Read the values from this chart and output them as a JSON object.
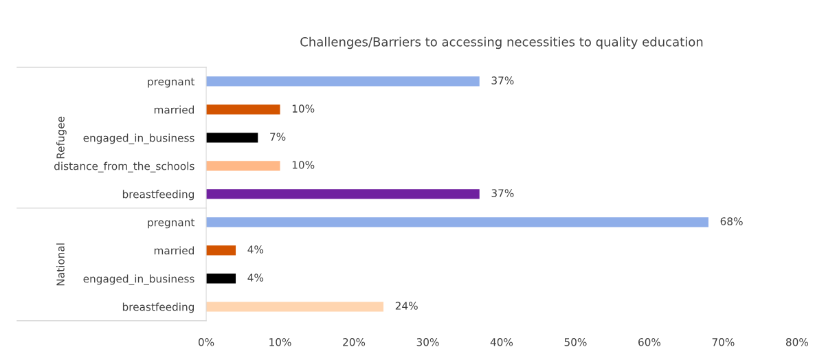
{
  "chart_data": {
    "type": "bar",
    "orientation": "horizontal",
    "title": "Challenges/Barriers to accessing necessities to quality education",
    "categories": [
      "pregnant",
      "married",
      "engaged_in_business",
      "distance_from_the_schools",
      "breastfeeding",
      "pregnant",
      "married",
      "engaged_in_business",
      "breastfeeding"
    ],
    "values": [
      37,
      10,
      7,
      10,
      37,
      68,
      4,
      4,
      24
    ],
    "colors": [
      "#8faee9",
      "#d35400",
      "#000000",
      "#ffb887",
      "#7020a0",
      "#8faee9",
      "#d35400",
      "#000000",
      "#ffd5b0"
    ],
    "value_labels": [
      "37%",
      "10%",
      "7%",
      "10%",
      "37%",
      "68%",
      "4%",
      "4%",
      "24%"
    ],
    "xlim": [
      0,
      80
    ],
    "xticks": [
      {
        "value": 0,
        "label": "0%"
      },
      {
        "value": 10,
        "label": "10%"
      },
      {
        "value": 20,
        "label": "20%"
      },
      {
        "value": 30,
        "label": "30%"
      },
      {
        "value": 40,
        "label": "40%"
      },
      {
        "value": 50,
        "label": "50%"
      },
      {
        "value": 60,
        "label": "60%"
      },
      {
        "value": 70,
        "label": "70%"
      },
      {
        "value": 80,
        "label": "80%"
      }
    ],
    "annotations": [
      "Refugee",
      "National"
    ],
    "grid": false,
    "legend": false
  }
}
